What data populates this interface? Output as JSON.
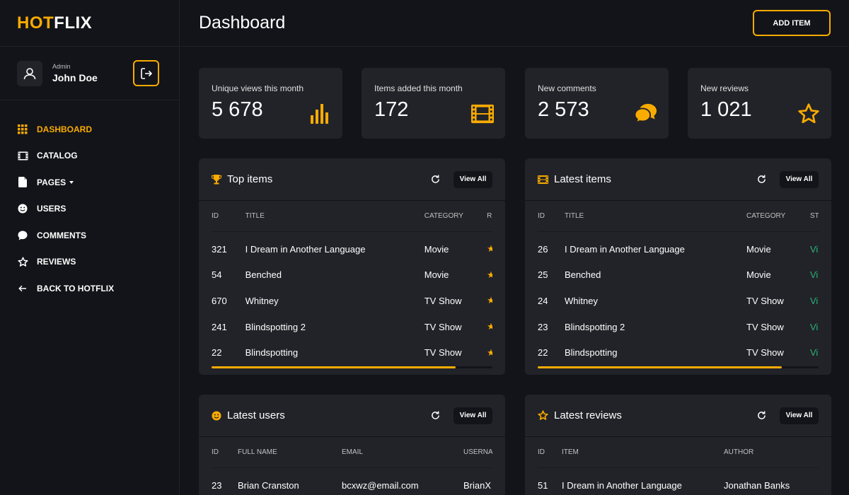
{
  "brand": {
    "hot": "HOT",
    "flix": "FLIX"
  },
  "user": {
    "role": "Admin",
    "name": "John Doe"
  },
  "nav": [
    {
      "label": "DASHBOARD",
      "icon": "grid-icon",
      "active": true
    },
    {
      "label": "CATALOG",
      "icon": "film-icon"
    },
    {
      "label": "PAGES",
      "icon": "document-icon"
    },
    {
      "label": "USERS",
      "icon": "user-smile-icon"
    },
    {
      "label": "COMMENTS",
      "icon": "chat-icon"
    },
    {
      "label": "REVIEWS",
      "icon": "star-icon"
    },
    {
      "label": "BACK TO HOTFLIX",
      "icon": "arrow-left-icon"
    }
  ],
  "header": {
    "title": "Dashboard",
    "add_label": "ADD ITEM"
  },
  "stats": [
    {
      "label": "Unique views this month",
      "value": "5 678",
      "icon": "bar-chart-icon"
    },
    {
      "label": "Items added this month",
      "value": "172",
      "icon": "film-strip-icon"
    },
    {
      "label": "New comments",
      "value": "2 573",
      "icon": "comments-icon"
    },
    {
      "label": "New reviews",
      "value": "1 021",
      "icon": "star-outline-icon"
    }
  ],
  "panels": {
    "top_items": {
      "title": "Top items",
      "view_all": "View All",
      "columns": [
        "ID",
        "TITLE",
        "CATEGORY",
        "R"
      ],
      "rows": [
        [
          "321",
          "I Dream in Another Language",
          "Movie",
          "★"
        ],
        [
          "54",
          "Benched",
          "Movie",
          "★"
        ],
        [
          "670",
          "Whitney",
          "TV Show",
          "★"
        ],
        [
          "241",
          "Blindspotting 2",
          "TV Show",
          "★"
        ],
        [
          "22",
          "Blindspotting",
          "TV Show",
          "★"
        ]
      ],
      "scroll_fraction": 0.87
    },
    "latest_items": {
      "title": "Latest items",
      "view_all": "View All",
      "columns": [
        "ID",
        "TITLE",
        "CATEGORY",
        "ST"
      ],
      "rows": [
        [
          "26",
          "I Dream in Another Language",
          "Movie",
          "Vi"
        ],
        [
          "25",
          "Benched",
          "Movie",
          "Vi"
        ],
        [
          "24",
          "Whitney",
          "TV Show",
          "Vi"
        ],
        [
          "23",
          "Blindspotting 2",
          "TV Show",
          "Vi"
        ],
        [
          "22",
          "Blindspotting",
          "TV Show",
          "Vi"
        ]
      ],
      "scroll_fraction": 0.87
    },
    "latest_users": {
      "title": "Latest users",
      "view_all": "View All",
      "columns": [
        "ID",
        "FULL NAME",
        "EMAIL",
        "USERNAI"
      ],
      "rows": [
        [
          "23",
          "Brian Cranston",
          "bcxwz@email.com",
          "BrianX"
        ]
      ]
    },
    "latest_reviews": {
      "title": "Latest reviews",
      "view_all": "View All",
      "columns": [
        "ID",
        "ITEM",
        "AUTHOR"
      ],
      "rows": [
        [
          "51",
          "I Dream in Another Language",
          "Jonathan Banks"
        ]
      ]
    }
  },
  "colors": {
    "accent": "#f9ab00",
    "status_green": "#29b474",
    "panel_bg": "#222329",
    "page_bg": "#131419"
  }
}
